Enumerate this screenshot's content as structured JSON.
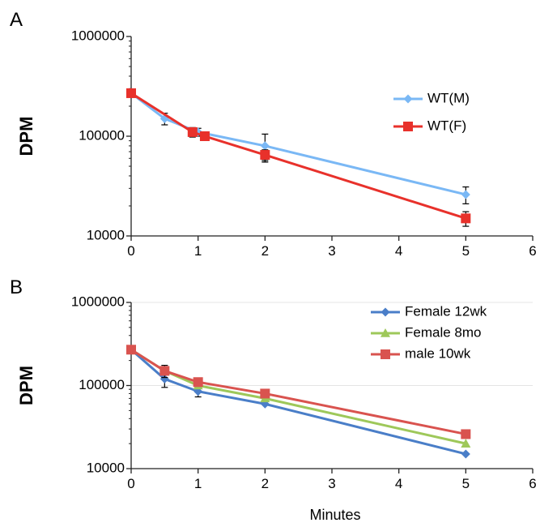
{
  "chart_data": [
    {
      "panel_label": "A",
      "type": "line",
      "ylabel": "DPM",
      "xlabel": "",
      "yscale": "log",
      "ylim": [
        10000,
        1000000
      ],
      "xlim": [
        0,
        6
      ],
      "x_ticks": [
        "0",
        "1",
        "2",
        "3",
        "4",
        "5",
        "6"
      ],
      "y_ticks": [
        "10000",
        "100000",
        "1000000"
      ],
      "grid": false,
      "legend_position": "top-right",
      "series": [
        {
          "name": "WT(M)",
          "color": "#7ab8f5",
          "marker": "diamond",
          "x": [
            0,
            0.5,
            1,
            2,
            5
          ],
          "y": [
            270000,
            150000,
            110000,
            80000,
            26000
          ],
          "err": [
            15000,
            20000,
            10000,
            25000,
            5000
          ]
        },
        {
          "name": "WT(F)",
          "color": "#e8312b",
          "marker": "square",
          "x": [
            0,
            0.917,
            1.1,
            2,
            5
          ],
          "y": [
            270000,
            110000,
            100000,
            65000,
            15000
          ],
          "err": [
            15000,
            12000,
            8000,
            8000,
            2500
          ]
        }
      ]
    },
    {
      "panel_label": "B",
      "type": "line",
      "ylabel": "DPM",
      "xlabel": "Minutes",
      "yscale": "log",
      "ylim": [
        10000,
        1000000
      ],
      "xlim": [
        0,
        6
      ],
      "x_ticks": [
        "0",
        "1",
        "2",
        "3",
        "4",
        "5",
        "6"
      ],
      "y_ticks": [
        "10000",
        "100000",
        "1000000"
      ],
      "grid": true,
      "legend_position": "top-right",
      "series": [
        {
          "name": "Female 12wk",
          "color": "#4a7ec8",
          "marker": "diamond",
          "x": [
            0,
            0.5,
            1,
            2,
            5
          ],
          "y": [
            270000,
            120000,
            85000,
            60000,
            15000
          ],
          "err": [
            0,
            25000,
            12000,
            0,
            0
          ]
        },
        {
          "name": "Female 8mo",
          "color": "#9ec85a",
          "marker": "triangle",
          "x": [
            0,
            0.5,
            1,
            2,
            5
          ],
          "y": [
            270000,
            150000,
            100000,
            70000,
            20000
          ],
          "err": [
            0,
            0,
            0,
            0,
            0
          ]
        },
        {
          "name": "male 10wk",
          "color": "#d9534f",
          "marker": "square",
          "x": [
            0,
            0.5,
            1,
            2,
            5
          ],
          "y": [
            270000,
            150000,
            110000,
            80000,
            26000
          ],
          "err": [
            0,
            25000,
            0,
            0,
            0
          ]
        }
      ]
    }
  ]
}
